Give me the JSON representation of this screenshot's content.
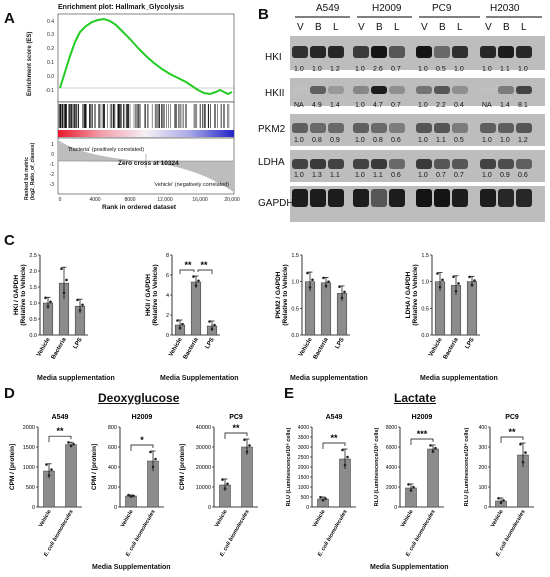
{
  "panels": {
    "A": "A",
    "B": "B",
    "C": "C",
    "D": "D",
    "E": "E"
  },
  "gsea": {
    "title": "Enrichment plot: Hallmark_Glycolysis",
    "ylabel_top": "Enrichment score (ES)",
    "ylabel_bottom": "Ranked list metric (log2_Ratio_of_classes)",
    "xlabel": "Rank in ordered dataset",
    "positive": "'Bacteria' (positively correlated)",
    "negative": "'vehicle' (negatively correlated)",
    "zero_cross": "Zero cross at 10324",
    "es_ticks": [
      "0.4",
      "0.3",
      "0.2",
      "0.1",
      "0.0",
      "-0.1"
    ],
    "metric_ticks": [
      "1",
      "0",
      "-1",
      "-2",
      "-3"
    ],
    "x_ticks": [
      "0",
      "4000",
      "8000",
      "12,000",
      "16,000",
      "20,000"
    ]
  },
  "western": {
    "cell_lines": [
      "A549",
      "H2009",
      "PC9",
      "H2030"
    ],
    "lane_labels": [
      "V",
      "B",
      "L",
      "V",
      "B",
      "L",
      "V",
      "B",
      "L",
      "V",
      "B",
      "L"
    ],
    "proteins": [
      {
        "name": "HKI",
        "values": [
          "1.0",
          "1.0",
          "1.2",
          "1.0",
          "2.6",
          "0.7",
          "1.0",
          "0.5",
          "1.0",
          "1.0",
          "1.1",
          "1.0"
        ]
      },
      {
        "name": "HKII",
        "values": [
          "NA",
          "4.9",
          "1.4",
          "1.0",
          "4.7",
          "0.7",
          "1.0",
          "2.2",
          "0.4",
          "NA",
          "1.4",
          "8.1"
        ]
      },
      {
        "name": "PKM2",
        "values": [
          "1.0",
          "0.8",
          "0.9",
          "1.0",
          "0.8",
          "0.6",
          "1.0",
          "1.1",
          "0.5",
          "1.0",
          "1.0",
          "1.2"
        ]
      },
      {
        "name": "LDHA",
        "values": [
          "1.0",
          "1.3",
          "1.1",
          "1.0",
          "1.1",
          "0.6",
          "1.0",
          "0.7",
          "0.7",
          "1.0",
          "0.9",
          "0.6"
        ]
      },
      {
        "name": "GAPDH",
        "values": []
      }
    ]
  },
  "panelC": {
    "xlabel": "Media supplementation",
    "xlabel2": "Media Supplementation",
    "categories": [
      "Vehicle",
      "Bacteria",
      "LPS"
    ]
  },
  "panelD": {
    "title": "Deoxyglucose",
    "xlabel": "Media Supplementation",
    "cat_vehicle": "Vehicle",
    "cat_bio": "E. coli biomolecules",
    "ylabel": "CPM / [protein]"
  },
  "panelE": {
    "title": "Lactate",
    "xlabel": "Media Supplementation",
    "cat_vehicle": "Vehicle",
    "cat_bio": "E. coli biomolecules",
    "ylabel": "RLU (Luminescence/10⁶ cells)"
  },
  "chart_data": [
    {
      "type": "bar",
      "title": "",
      "ylabel": "HKI / GAPDH (Relative to Vehicle)",
      "categories": [
        "Vehicle",
        "Bacteria",
        "LPS"
      ],
      "values": [
        1.0,
        1.62,
        0.9
      ],
      "errors": [
        0.18,
        0.5,
        0.22
      ],
      "ylim": [
        0,
        2.5
      ],
      "yticks": [
        "0.0",
        "0.5",
        "1.0",
        "1.5",
        "2.0",
        "2.5"
      ],
      "signif": []
    },
    {
      "type": "bar",
      "title": "",
      "ylabel": "HKII / GAPDH (Relative to Vehicle)",
      "categories": [
        "Vehicle",
        "Bacteria",
        "LPS"
      ],
      "values": [
        1.0,
        5.3,
        0.9
      ],
      "errors": [
        0.5,
        0.6,
        0.5
      ],
      "ylim": [
        0,
        8
      ],
      "yticks": [
        "0",
        "2",
        "4",
        "6",
        "8"
      ],
      "signif": [
        "**",
        "**"
      ]
    },
    {
      "type": "bar",
      "title": "",
      "ylabel": "PKM2 / GAPDH (Relative to Vehicle)",
      "categories": [
        "Vehicle",
        "Bacteria",
        "LPS"
      ],
      "values": [
        1.0,
        0.98,
        0.78
      ],
      "errors": [
        0.18,
        0.1,
        0.14
      ],
      "ylim": [
        0,
        1.5
      ],
      "yticks": [
        "0.0",
        "0.5",
        "1.0",
        "1.5"
      ],
      "signif": []
    },
    {
      "type": "bar",
      "title": "",
      "ylabel": "LDHA / GAPDH (Relative to Vehicle)",
      "categories": [
        "Vehicle",
        "Bacteria",
        "LPS"
      ],
      "values": [
        1.0,
        0.93,
        1.0
      ],
      "errors": [
        0.17,
        0.18,
        0.1
      ],
      "ylim": [
        0,
        1.5
      ],
      "yticks": [
        "0.0",
        "0.5",
        "1.0",
        "1.5"
      ],
      "signif": []
    },
    {
      "type": "bar",
      "title": "A549",
      "ylabel": "CPM / [protein]",
      "categories": [
        "Vehicle",
        "E. coli biomolecules"
      ],
      "values": [
        900,
        1560
      ],
      "errors": [
        180,
        60
      ],
      "ylim": [
        0,
        2000
      ],
      "yticks": [
        "0",
        "500",
        "1000",
        "1500",
        "2000"
      ],
      "signif": [
        "**"
      ]
    },
    {
      "type": "bar",
      "title": "H2009",
      "ylabel": "CPM / [protein]",
      "categories": [
        "Vehicle",
        "E. coli biomolecules"
      ],
      "values": [
        110,
        460
      ],
      "errors": [
        10,
        100
      ],
      "ylim": [
        0,
        800
      ],
      "yticks": [
        "0",
        "200",
        "400",
        "600",
        "800"
      ],
      "signif": [
        "*"
      ]
    },
    {
      "type": "bar",
      "title": "PC9",
      "ylabel": "CPM / [protein]",
      "categories": [
        "Vehicle",
        "E. coli biomolecules"
      ],
      "values": [
        11000,
        30000
      ],
      "errors": [
        3000,
        4000
      ],
      "ylim": [
        0,
        40000
      ],
      "yticks": [
        "0",
        "10000",
        "20000",
        "30000",
        "40000"
      ],
      "signif": [
        "**"
      ]
    },
    {
      "type": "bar",
      "title": "A549",
      "ylabel": "RLU (Luminescence/10⁶ cells)",
      "categories": [
        "Vehicle",
        "E. coli biomolecules"
      ],
      "values": [
        400,
        2400
      ],
      "errors": [
        100,
        500
      ],
      "ylim": [
        0,
        4000
      ],
      "yticks": [
        "0",
        "500",
        "1000",
        "1500",
        "2000",
        "2500",
        "3000",
        "3500",
        "4000"
      ],
      "signif": [
        "**"
      ]
    },
    {
      "type": "bar",
      "title": "H2009",
      "ylabel": "RLU (Luminescence/10⁶ cells)",
      "categories": [
        "Vehicle",
        "E. coli biomolecules"
      ],
      "values": [
        1900,
        5800
      ],
      "errors": [
        400,
        400
      ],
      "ylim": [
        0,
        8000
      ],
      "yticks": [
        "0",
        "2000",
        "4000",
        "6000",
        "8000"
      ],
      "signif": [
        "***"
      ]
    },
    {
      "type": "bar",
      "title": "PC9",
      "ylabel": "RLU (Luminescence/10⁶ cells)",
      "categories": [
        "Vehicle",
        "E. coli biomolecules"
      ],
      "values": [
        30,
        260
      ],
      "errors": [
        15,
        60
      ],
      "ylim": [
        0,
        400
      ],
      "yticks": [
        "0",
        "100",
        "200",
        "300",
        "400"
      ],
      "signif": [
        "**"
      ]
    }
  ]
}
